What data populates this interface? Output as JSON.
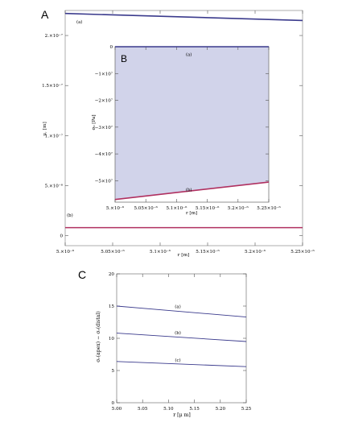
{
  "panels": {
    "a": "A",
    "b": "B",
    "c": "C"
  },
  "chart_data": [
    {
      "panel": "A",
      "type": "line",
      "xlabel": "r [m]",
      "ylabel": "u, [m]",
      "xlim": [
        5e-06,
        5.25e-06
      ],
      "ylim": [
        -1e-08,
        2.25e-07
      ],
      "x_ticks": [
        5e-06,
        5.05e-06,
        5.1e-06,
        5.15e-06,
        5.2e-06,
        5.25e-06
      ],
      "x_tick_labels": [
        "5.×10⁻⁶",
        "5.05×10⁻⁶",
        "5.1×10⁻⁶",
        "5.15×10⁻⁶",
        "5.2×10⁻⁶",
        "5.25×10⁻⁶"
      ],
      "y_ticks": [
        0,
        5e-08,
        1e-07,
        1.5e-07,
        2e-07
      ],
      "y_tick_labels": [
        "0",
        "5.×10⁻⁸",
        "1.×10⁻⁷",
        "1.5×10⁻⁷",
        "2.×10⁻⁷"
      ],
      "series": [
        {
          "name": "(a)",
          "color": "#3a3a8c",
          "x": [
            5e-06,
            5.25e-06
          ],
          "y": [
            2.22e-07,
            2.15e-07
          ]
        },
        {
          "name": "(b)",
          "color": "#b03060",
          "x": [
            5e-06,
            5.25e-06
          ],
          "y": [
            8e-09,
            8e-09
          ]
        }
      ]
    },
    {
      "panel": "B",
      "type": "area",
      "xlabel": "r [m]",
      "ylabel": "σ₀ [Pa]",
      "xlim": [
        5e-06,
        5.25e-06
      ],
      "ylim": [
        -58000000.0,
        0
      ],
      "x_ticks": [
        5e-06,
        5.05e-06,
        5.1e-06,
        5.15e-06,
        5.2e-06,
        5.25e-06
      ],
      "x_tick_labels": [
        "5.×10⁻⁶",
        "5.05×10⁻⁶",
        "5.1×10⁻⁶",
        "5.15×10⁻⁶",
        "5.2×10⁻⁶",
        "5.25×10⁻⁶"
      ],
      "y_ticks": [
        0,
        -10000000.0,
        -20000000.0,
        -30000000.0,
        -40000000.0,
        -50000000.0
      ],
      "y_tick_labels": [
        "0",
        "−1×10⁷",
        "−2×10⁷",
        "−3×10⁷",
        "−4×10⁷",
        "−5×10⁷"
      ],
      "fill_color": "#c9cbe6",
      "series": [
        {
          "name": "(a)",
          "color": "#3a3a8c",
          "x": [
            5e-06,
            5.25e-06
          ],
          "y": [
            0,
            0
          ]
        },
        {
          "name": "(b)",
          "color": "#b03060",
          "x": [
            5e-06,
            5.25e-06
          ],
          "y": [
            -57000000.0,
            -50500000.0
          ]
        }
      ]
    },
    {
      "panel": "C",
      "type": "line",
      "xlabel": "r [μ m]",
      "ylabel": "σᵣ(apex) − σᵣ(distal)",
      "xlim": [
        5.0,
        5.25
      ],
      "ylim": [
        0,
        20
      ],
      "x_ticks": [
        5.0,
        5.05,
        5.1,
        5.15,
        5.2,
        5.25
      ],
      "x_tick_labels": [
        "5.00",
        "5.05",
        "5.10",
        "5.15",
        "5.20",
        "5.25"
      ],
      "y_ticks": [
        0,
        5,
        10,
        15,
        20
      ],
      "y_tick_labels": [
        "0",
        "5",
        "10",
        "15",
        "20"
      ],
      "series": [
        {
          "name": "(a)",
          "color": "#3a3a8c",
          "x": [
            5.0,
            5.25
          ],
          "y": [
            15.0,
            13.3
          ]
        },
        {
          "name": "(b)",
          "color": "#3a3a8c",
          "x": [
            5.0,
            5.25
          ],
          "y": [
            10.8,
            9.5
          ]
        },
        {
          "name": "(c)",
          "color": "#3a3a8c",
          "x": [
            5.0,
            5.25
          ],
          "y": [
            6.4,
            5.6
          ]
        }
      ]
    }
  ]
}
